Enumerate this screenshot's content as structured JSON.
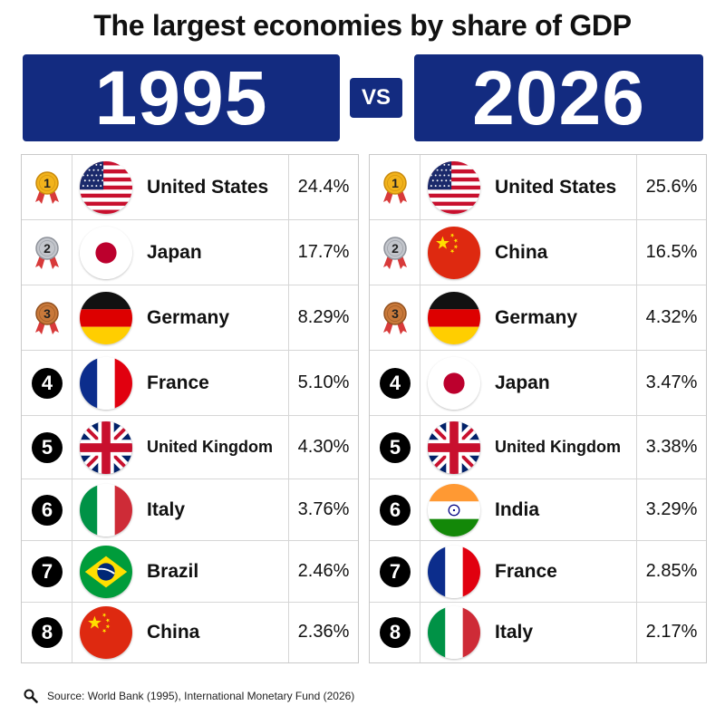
{
  "title": "The largest economies by share of GDP",
  "left_year": "1995",
  "vs_label": "VS",
  "right_year": "2026",
  "left_rows": [
    {
      "rank": "1",
      "rank_type": "gold-medal",
      "flag": "us",
      "country": "United States",
      "value": "24.4%"
    },
    {
      "rank": "2",
      "rank_type": "silver-medal",
      "flag": "japan",
      "country": "Japan",
      "value": "17.7%"
    },
    {
      "rank": "3",
      "rank_type": "bronze-medal",
      "flag": "germany",
      "country": "Germany",
      "value": "8.29%"
    },
    {
      "rank": "4",
      "rank_type": "number",
      "flag": "france",
      "country": "France",
      "value": "5.10%"
    },
    {
      "rank": "5",
      "rank_type": "number",
      "flag": "uk",
      "country": "United Kingdom",
      "value": "4.30%"
    },
    {
      "rank": "6",
      "rank_type": "number",
      "flag": "italy",
      "country": "Italy",
      "value": "3.76%"
    },
    {
      "rank": "7",
      "rank_type": "number",
      "flag": "brazil",
      "country": "Brazil",
      "value": "2.46%"
    },
    {
      "rank": "8",
      "rank_type": "number",
      "flag": "china",
      "country": "China",
      "value": "2.36%"
    }
  ],
  "right_rows": [
    {
      "rank": "1",
      "rank_type": "gold-medal",
      "flag": "us",
      "country": "United States",
      "value": "25.6%"
    },
    {
      "rank": "2",
      "rank_type": "silver-medal",
      "flag": "china",
      "country": "China",
      "value": "16.5%"
    },
    {
      "rank": "3",
      "rank_type": "bronze-medal",
      "flag": "germany",
      "country": "Germany",
      "value": "4.32%"
    },
    {
      "rank": "4",
      "rank_type": "number",
      "flag": "japan",
      "country": "Japan",
      "value": "3.47%"
    },
    {
      "rank": "5",
      "rank_type": "number",
      "flag": "uk",
      "country": "United Kingdom",
      "value": "3.38%"
    },
    {
      "rank": "6",
      "rank_type": "number",
      "flag": "india",
      "country": "India",
      "value": "3.29%"
    },
    {
      "rank": "7",
      "rank_type": "number",
      "flag": "france",
      "country": "France",
      "value": "2.85%"
    },
    {
      "rank": "8",
      "rank_type": "number",
      "flag": "italy",
      "country": "Italy",
      "value": "2.17%"
    }
  ],
  "source": "Source: World Bank (1995), International Monetary Fund (2026)",
  "colors": {
    "banner": "#132b80",
    "gold": "#f2b31c",
    "silver": "#c3c6cc",
    "bronze": "#c9793a",
    "ribbon": "#d83a3a"
  }
}
